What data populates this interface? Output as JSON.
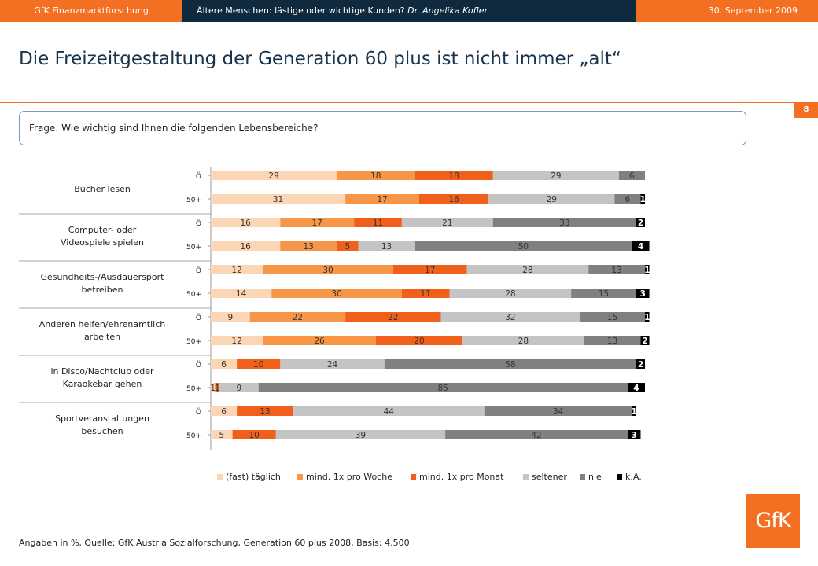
{
  "header": {
    "left": "GfK Finanzmarktforschung",
    "middle_prefix": "Ältere Menschen: lästige oder wichtige Kunden?",
    "middle_author": "Dr. Angelika Kofler",
    "right": "30. September 2009"
  },
  "title": "Die Freizeitgestaltung der Generation 60 plus ist nicht immer „alt“",
  "page_number": "8",
  "question": "Frage: Wie wichtig sind Ihnen die folgenden Lebensbereiche?",
  "footnote": "Angaben in %, Quelle: GfK Austria Sozialforschung,  Generation 60 plus 2008, Basis: 4.500",
  "logo_text": "GfK",
  "colors": {
    "fast_taeglich": "#fcd5b4",
    "woche": "#f79646",
    "monat": "#f0601a",
    "seltener": "#c4c4c4",
    "nie": "#808080",
    "ka": "#000000",
    "accent": "#f36f21",
    "navy": "#0f2a3e"
  },
  "chart_data": {
    "type": "bar",
    "orientation": "horizontal",
    "stacked": true,
    "unit": "%",
    "legend_position": "bottom",
    "legend": [
      "(fast) täglich",
      "mind. 1x pro Woche",
      "mind. 1x pro Monat",
      "seltener",
      "nie",
      "k.A."
    ],
    "groups": [
      {
        "label": [
          "Bücher lesen"
        ],
        "rows": [
          {
            "label": "Ö",
            "values": [
              29,
              18,
              18,
              29,
              6,
              null
            ]
          },
          {
            "label": "50+",
            "values": [
              31,
              17,
              16,
              29,
              6,
              1
            ]
          }
        ]
      },
      {
        "label": [
          "Computer- oder",
          "Videospiele spielen"
        ],
        "rows": [
          {
            "label": "Ö",
            "values": [
              16,
              17,
              11,
              21,
              33,
              2
            ]
          },
          {
            "label": "50+",
            "values": [
              16,
              13,
              5,
              13,
              50,
              4
            ]
          }
        ]
      },
      {
        "label": [
          "Gesundheits-/Ausdauersport",
          "betreiben"
        ],
        "rows": [
          {
            "label": "Ö",
            "values": [
              12,
              30,
              17,
              28,
              13,
              1
            ]
          },
          {
            "label": "50+",
            "values": [
              14,
              30,
              11,
              28,
              15,
              3
            ]
          }
        ]
      },
      {
        "label": [
          "Anderen helfen/ehrenamtlich",
          "arbeiten"
        ],
        "rows": [
          {
            "label": "Ö",
            "values": [
              9,
              22,
              22,
              32,
              15,
              1
            ]
          },
          {
            "label": "50+",
            "values": [
              12,
              26,
              20,
              28,
              13,
              2
            ]
          }
        ]
      },
      {
        "label": [
          "in Disco/Nachtclub oder",
          "Karaokebar gehen"
        ],
        "rows": [
          {
            "label": "Ö",
            "values": [
              6,
              10,
              24,
              58,
              2,
              null
            ]
          },
          {
            "label": "50+",
            "values": [
              1,
              1,
              9,
              85,
              4,
              null
            ]
          }
        ]
      },
      {
        "label": [
          "Sportveranstaltungen",
          "besuchen"
        ],
        "rows": [
          {
            "label": "Ö",
            "values": [
              6,
              13,
              44,
              34,
              1,
              null
            ]
          },
          {
            "label": "50+",
            "values": [
              5,
              10,
              39,
              42,
              3,
              null
            ]
          }
        ]
      }
    ],
    "segment_order_note": "values follow legend order except where a category is absent",
    "row_categories": [
      [
        [
          0,
          1,
          2,
          3,
          4
        ],
        [
          0,
          1,
          2,
          3,
          4,
          5
        ]
      ],
      [
        [
          0,
          1,
          2,
          3,
          4,
          5
        ],
        [
          0,
          1,
          2,
          3,
          4,
          5
        ]
      ],
      [
        [
          0,
          1,
          2,
          3,
          4,
          5
        ],
        [
          0,
          1,
          2,
          3,
          4,
          5
        ]
      ],
      [
        [
          0,
          1,
          2,
          3,
          4,
          5
        ],
        [
          0,
          1,
          2,
          3,
          4,
          5
        ]
      ],
      [
        [
          0,
          2,
          3,
          4,
          5
        ],
        [
          0,
          2,
          3,
          4,
          5
        ]
      ],
      [
        [
          0,
          2,
          3,
          4,
          5
        ],
        [
          0,
          2,
          3,
          4,
          5
        ]
      ]
    ]
  }
}
